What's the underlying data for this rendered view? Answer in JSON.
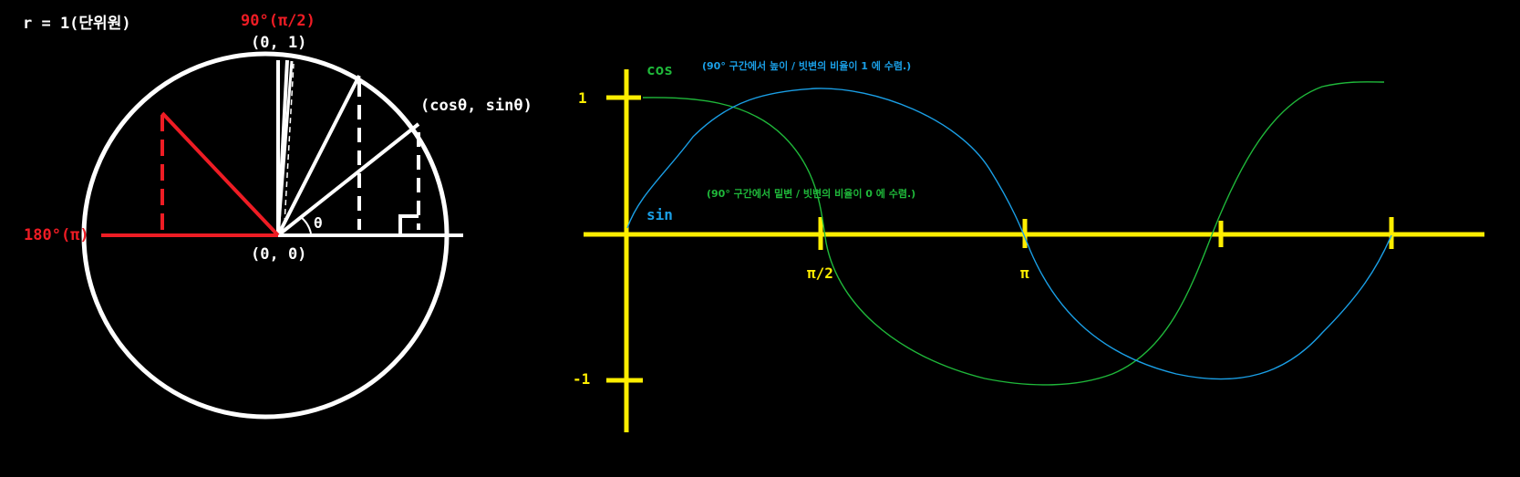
{
  "colors": {
    "background": "#000000",
    "white": "#ffffff",
    "red": "#ee1c24",
    "yellow": "#ffee00",
    "blue": "#1a9fe6",
    "green": "#1fb83a"
  },
  "unit_circle": {
    "radius_label": "r = 1(단위원)",
    "angle_90_label": "90°(π/2)",
    "top_point_label": "(0, 1)",
    "origin_label": "(0, 0)",
    "point_label": "(cosθ, sinθ)",
    "theta_label": "θ",
    "angle_180_label": "180°(π)"
  },
  "graph": {
    "cos_label": "cos",
    "sin_label": "sin",
    "blue_note": "(90° 구간에서 높이 / 빗변의 비율이 1 에 수렴.)",
    "green_note": "(90° 구간에서 밑변 / 빗변의 비율이 0 에 수렴.)",
    "y_top_label": "1",
    "y_bottom_label": "-1",
    "x_label_half_pi": "π/2",
    "x_label_pi": "π"
  }
}
